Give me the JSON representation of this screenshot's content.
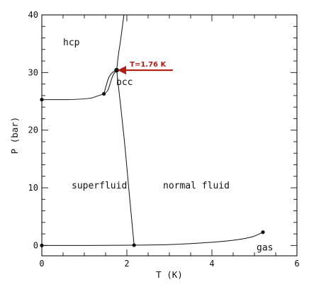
{
  "chart_data": {
    "type": "line",
    "xlabel": "T (K)",
    "ylabel": "P (bar)",
    "xlim": [
      0,
      6
    ],
    "ylim": [
      -1.8,
      40
    ],
    "grid": false,
    "x_ticks": [
      0,
      2,
      4,
      6
    ],
    "y_ticks": [
      0,
      10,
      20,
      30,
      40
    ],
    "x_tick_labels": [
      "0",
      "2",
      "4",
      "6"
    ],
    "y_tick_labels": [
      "0",
      "10",
      "20",
      "30",
      "40"
    ],
    "series": [
      {
        "id": "melting_curve",
        "points": [
          [
            0,
            25.3
          ],
          [
            0.6,
            25.3
          ],
          [
            1.1,
            25.5
          ],
          [
            1.3,
            25.9
          ],
          [
            1.46,
            26.3
          ]
        ]
      },
      {
        "id": "hcp_bcc_boundary_lower",
        "points": [
          [
            1.46,
            26.3
          ],
          [
            1.55,
            26.9
          ],
          [
            1.62,
            28.4
          ],
          [
            1.68,
            29.6
          ],
          [
            1.76,
            30.4
          ]
        ]
      },
      {
        "id": "bcc_upper_boundary",
        "points": [
          [
            1.46,
            26.3
          ],
          [
            1.52,
            27.9
          ],
          [
            1.58,
            29.2
          ],
          [
            1.66,
            30.0
          ],
          [
            1.76,
            30.4
          ]
        ]
      },
      {
        "id": "solid_fluid_upper",
        "points": [
          [
            1.76,
            30.4
          ],
          [
            1.8,
            33
          ],
          [
            1.86,
            36
          ],
          [
            1.93,
            40
          ]
        ]
      },
      {
        "id": "lambda_line",
        "points": [
          [
            1.76,
            30.4
          ],
          [
            1.93,
            19
          ],
          [
            2.05,
            9.5
          ],
          [
            2.17,
            0.05
          ]
        ]
      },
      {
        "id": "vapor_pressure_low",
        "points": [
          [
            0,
            0
          ],
          [
            1.0,
            0
          ],
          [
            2.17,
            0.05
          ]
        ]
      },
      {
        "id": "vapor_pressure_high",
        "points": [
          [
            2.17,
            0.05
          ],
          [
            3.0,
            0.15
          ],
          [
            4.0,
            0.55
          ],
          [
            4.6,
            1.0
          ],
          [
            4.95,
            1.5
          ],
          [
            5.2,
            2.3
          ]
        ]
      }
    ],
    "points": [
      {
        "id": "p1",
        "x": 0,
        "y": 25.3
      },
      {
        "id": "p2",
        "x": 1.46,
        "y": 26.3
      },
      {
        "id": "p3",
        "x": 1.76,
        "y": 30.4
      },
      {
        "id": "p4",
        "x": 0,
        "y": 0
      },
      {
        "id": "p5",
        "x": 2.17,
        "y": 0.05
      },
      {
        "id": "p6",
        "x": 5.2,
        "y": 2.3
      }
    ],
    "region_labels": [
      {
        "id": "hcp",
        "text": "hcp",
        "x": 0.5,
        "y": 34.7
      },
      {
        "id": "bcc",
        "text": "bcc",
        "x": 1.75,
        "y": 27.8
      },
      {
        "id": "superfluid",
        "text": "superfluid",
        "x": 0.7,
        "y": 9.9
      },
      {
        "id": "normal-fluid",
        "text": "normal fluid",
        "x": 2.85,
        "y": 9.9
      },
      {
        "id": "gas",
        "text": "gas",
        "x": 5.05,
        "y": -0.9
      }
    ],
    "annotation": {
      "text": "T=1.76 K",
      "target": [
        1.76,
        30.4
      ],
      "tail": [
        3.08,
        30.4
      ],
      "color": "#b01e16"
    }
  }
}
